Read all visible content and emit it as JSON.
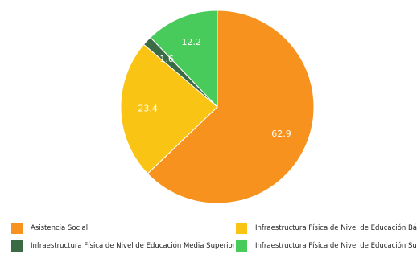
{
  "chart_data": {
    "type": "pie",
    "title": "",
    "categories": [
      "Asistencia Social",
      "Infraestructura Física de Nivel de Educación Básica",
      "Infraestructura Física de Nivel de Educación Media Superior",
      "Infraestructura Física de Nivel de Educación Superior"
    ],
    "values": [
      62.9,
      23.4,
      1.6,
      12.2
    ],
    "colors": [
      "#F7921E",
      "#F9C413",
      "#3A6B45",
      "#48CB5B"
    ],
    "legend_position": "bottom",
    "data_labels": [
      "62.9",
      "23.4",
      "1.6",
      "12.2"
    ]
  }
}
